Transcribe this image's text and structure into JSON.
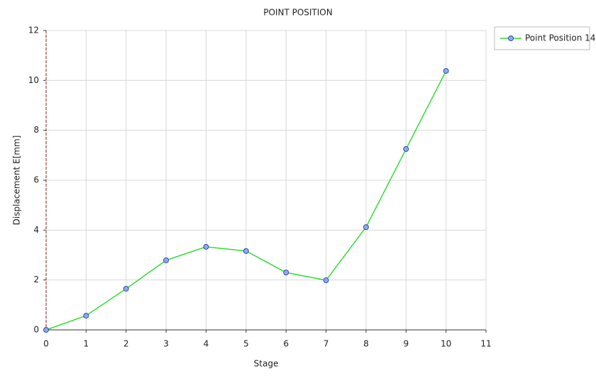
{
  "chart_data": {
    "type": "line",
    "title": "POINT POSITION",
    "x_label": "Stage",
    "y_label": "Displacement E[mm]",
    "x": [
      0,
      1,
      2,
      3,
      4,
      5,
      6,
      7,
      8,
      9,
      10
    ],
    "series": [
      {
        "name": "Point Position 14",
        "color": "#33dd33",
        "marker_color": "#8fa8f0",
        "values": [
          0,
          0.57,
          1.65,
          2.79,
          3.33,
          3.16,
          2.3,
          1.99,
          4.12,
          7.25,
          10.38
        ]
      }
    ],
    "xlim": [
      0,
      11
    ],
    "xticks": [
      0,
      1,
      2,
      3,
      4,
      5,
      6,
      7,
      8,
      9,
      10,
      11
    ],
    "ylim": [
      0,
      12
    ],
    "yticks": [
      0,
      2,
      4,
      6,
      8,
      10,
      12
    ],
    "grid": true,
    "legend": "right"
  }
}
